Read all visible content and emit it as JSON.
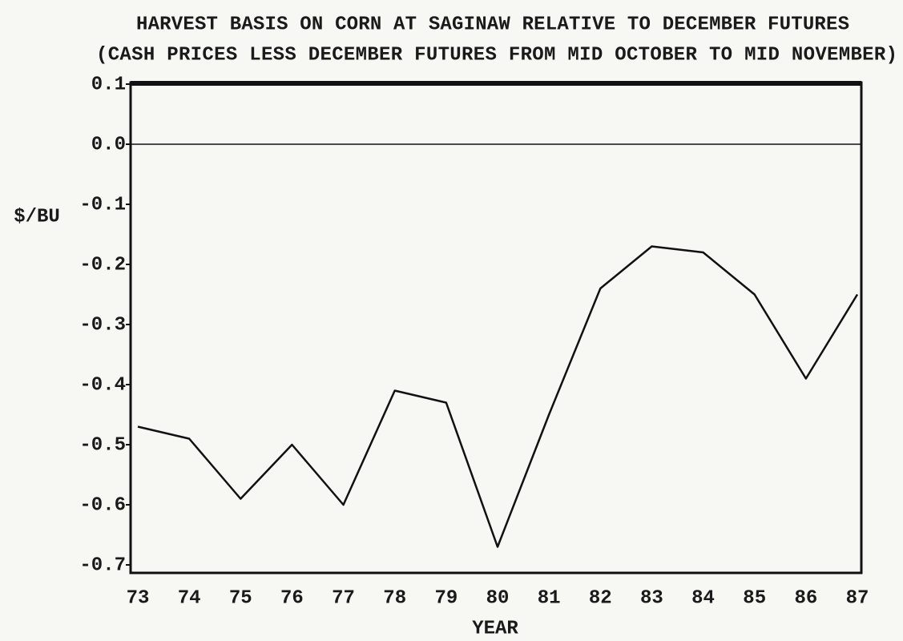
{
  "chart_data": {
    "type": "line",
    "title": "HARVEST BASIS ON CORN AT SAGINAW RELATIVE TO DECEMBER FUTURES",
    "subtitle": "(CASH PRICES LESS DECEMBER FUTURES FROM MID OCTOBER TO MID NOVEMBER)",
    "y_label": "$/BU",
    "x_label": "YEAR",
    "categories": [
      "73",
      "74",
      "75",
      "76",
      "77",
      "78",
      "79",
      "80",
      "81",
      "82",
      "83",
      "84",
      "85",
      "86",
      "87"
    ],
    "values": [
      -0.47,
      -0.49,
      -0.59,
      -0.5,
      -0.6,
      -0.41,
      -0.43,
      -0.67,
      -0.45,
      -0.24,
      -0.17,
      -0.18,
      -0.25,
      -0.39,
      -0.25
    ],
    "color": "#111111",
    "ylim": [
      -0.7,
      0.1
    ],
    "yticks": [
      0.1,
      {
        "value": 0,
        "label": "0.0"
      },
      -0.1,
      -0.2,
      -0.3,
      -0.4,
      -0.5,
      -0.6,
      -0.7
    ]
  }
}
